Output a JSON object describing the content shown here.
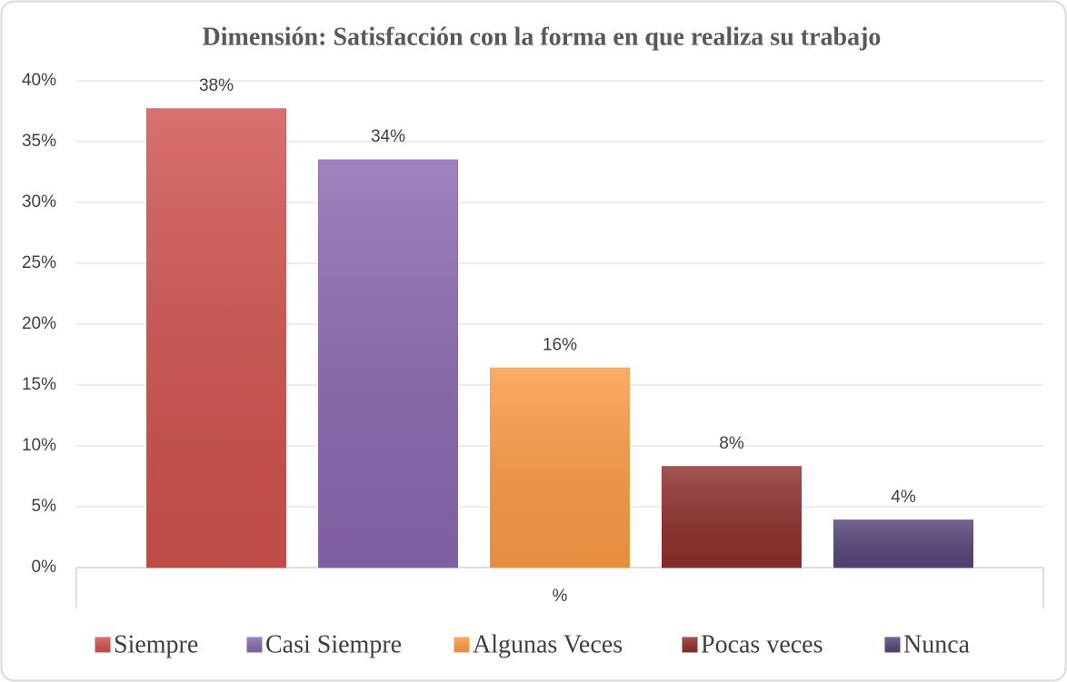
{
  "chart_data": {
    "type": "bar",
    "title": "Dimensión: Satisfacción con la forma en que realiza su trabajo",
    "categories": [
      "%"
    ],
    "series": [
      {
        "name": "Siempre",
        "color": "#d0524e",
        "values": [
          37.7
        ],
        "value_labels": [
          "38%"
        ]
      },
      {
        "name": "Casi Siempre",
        "color": "#8a68b0",
        "values": [
          33.5
        ],
        "value_labels": [
          "34%"
        ]
      },
      {
        "name": "Algunas Veces",
        "color": "#fb9a45",
        "values": [
          16.4
        ],
        "value_labels": [
          "16%"
        ]
      },
      {
        "name": "Pocas veces",
        "color": "#8e302d",
        "values": [
          8.3
        ],
        "value_labels": [
          "8%"
        ]
      },
      {
        "name": "Nunca",
        "color": "#574579",
        "values": [
          3.9
        ],
        "value_labels": [
          "4%"
        ]
      }
    ],
    "ylim": [
      0,
      40
    ],
    "yticks": [
      {
        "value": 0,
        "label": "0%"
      },
      {
        "value": 5,
        "label": "5%"
      },
      {
        "value": 10,
        "label": "10%"
      },
      {
        "value": 15,
        "label": "15%"
      },
      {
        "value": 20,
        "label": "20%"
      },
      {
        "value": 25,
        "label": "25%"
      },
      {
        "value": 30,
        "label": "30%"
      },
      {
        "value": 35,
        "label": "35%"
      },
      {
        "value": 40,
        "label": "40%"
      }
    ],
    "grid": true,
    "legend": "bottom"
  }
}
